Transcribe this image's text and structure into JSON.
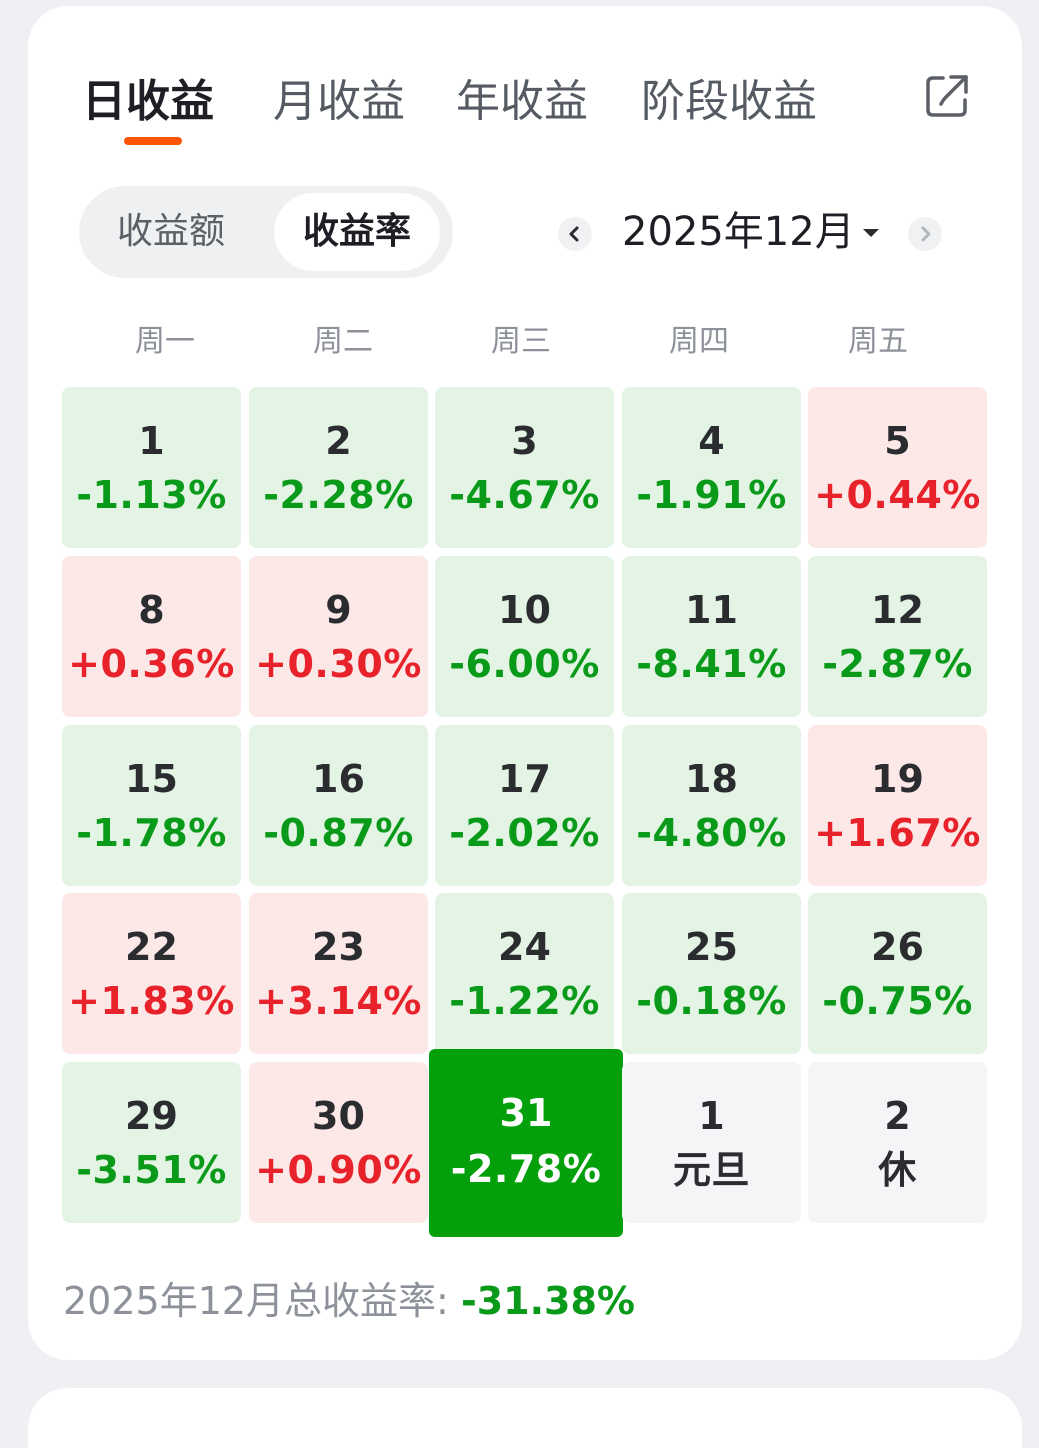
{
  "tabs": [
    {
      "label": "日收益",
      "active": true
    },
    {
      "label": "月收益",
      "active": false
    },
    {
      "label": "年收益",
      "active": false
    },
    {
      "label": "阶段收益",
      "active": false
    }
  ],
  "share_icon": "share-icon",
  "segment": {
    "options": [
      "收益额",
      "收益率"
    ],
    "selected": "收益率"
  },
  "month_picker": {
    "label": "2025年12月",
    "prev_icon": "chevron-left-icon",
    "next_icon": "chevron-right-icon",
    "caret_icon": "caret-down-icon"
  },
  "weekdays": [
    "周一",
    "周二",
    "周三",
    "周四",
    "周五"
  ],
  "calendar": {
    "rows": [
      [
        {
          "day": "1",
          "value": "-1.13%",
          "trend": "down"
        },
        {
          "day": "2",
          "value": "-2.28%",
          "trend": "down"
        },
        {
          "day": "3",
          "value": "-4.67%",
          "trend": "down"
        },
        {
          "day": "4",
          "value": "-1.91%",
          "trend": "down"
        },
        {
          "day": "5",
          "value": "+0.44%",
          "trend": "up"
        }
      ],
      [
        {
          "day": "8",
          "value": "+0.36%",
          "trend": "up"
        },
        {
          "day": "9",
          "value": "+0.30%",
          "trend": "up"
        },
        {
          "day": "10",
          "value": "-6.00%",
          "trend": "down"
        },
        {
          "day": "11",
          "value": "-8.41%",
          "trend": "down"
        },
        {
          "day": "12",
          "value": "-2.87%",
          "trend": "down"
        }
      ],
      [
        {
          "day": "15",
          "value": "-1.78%",
          "trend": "down"
        },
        {
          "day": "16",
          "value": "-0.87%",
          "trend": "down"
        },
        {
          "day": "17",
          "value": "-2.02%",
          "trend": "down"
        },
        {
          "day": "18",
          "value": "-4.80%",
          "trend": "down"
        },
        {
          "day": "19",
          "value": "+1.67%",
          "trend": "up"
        }
      ],
      [
        {
          "day": "22",
          "value": "+1.83%",
          "trend": "up"
        },
        {
          "day": "23",
          "value": "+3.14%",
          "trend": "up"
        },
        {
          "day": "24",
          "value": "-1.22%",
          "trend": "down"
        },
        {
          "day": "25",
          "value": "-0.18%",
          "trend": "down"
        },
        {
          "day": "26",
          "value": "-0.75%",
          "trend": "down"
        }
      ],
      [
        {
          "day": "29",
          "value": "-3.51%",
          "trend": "down"
        },
        {
          "day": "30",
          "value": "+0.90%",
          "trend": "up"
        },
        {
          "day": "31",
          "value": "-2.78%",
          "trend": "down",
          "selected": true
        },
        {
          "day": "1",
          "value": "元旦",
          "trend": "neutral"
        },
        {
          "day": "2",
          "value": "休",
          "trend": "neutral"
        }
      ]
    ]
  },
  "summary": {
    "label": "2025年12月总收益率: ",
    "total": "-31.38%"
  },
  "colors": {
    "accent": "#ff5500",
    "down": "#0a9a1a",
    "up": "#e8222a",
    "down_bg": "#e4f4e4",
    "up_bg": "#fde8e8",
    "selected_bg": "#03a00b",
    "neutral_bg": "#f4f5f7"
  }
}
